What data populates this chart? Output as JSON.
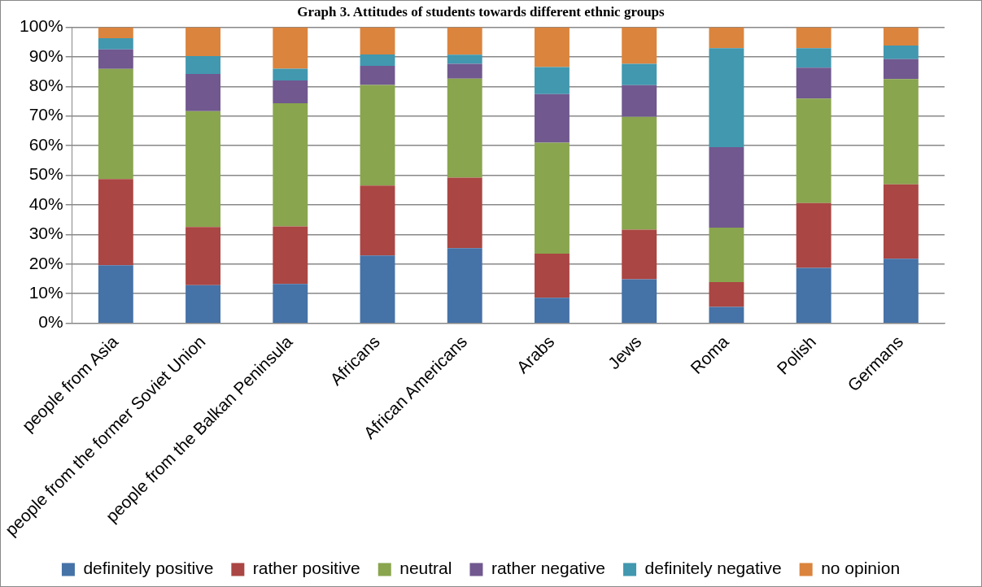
{
  "chart_data": {
    "type": "bar",
    "title": "Graph 3. Attitudes of students towards different ethnic groups",
    "stacked": true,
    "categories": [
      "people from Asia",
      "people from the former Soviet Union",
      "people from the Balkan Peninsula",
      "Africans",
      "African Americans",
      "Arabs",
      "Jews",
      "Roma",
      "Polish",
      "Germans"
    ],
    "series": [
      {
        "name": "definitely positive",
        "color": "#4572a7",
        "values": [
          19.6,
          12.9,
          13.3,
          22.9,
          25.4,
          8.6,
          14.9,
          5.5,
          18.7,
          21.8
        ]
      },
      {
        "name": "rather positive",
        "color": "#aa4643",
        "values": [
          29.1,
          19.6,
          19.4,
          23.6,
          23.8,
          14.9,
          16.7,
          8.4,
          21.9,
          25.1
        ]
      },
      {
        "name": "neutral",
        "color": "#89a54e",
        "values": [
          37.2,
          39.1,
          41.6,
          34.0,
          33.4,
          37.5,
          38.1,
          18.4,
          35.3,
          35.6
        ]
      },
      {
        "name": "rather negative",
        "color": "#71588f",
        "values": [
          6.6,
          12.6,
          7.7,
          6.4,
          5.0,
          16.4,
          10.7,
          27.2,
          10.4,
          6.7
        ]
      },
      {
        "name": "definitely negative",
        "color": "#4198af",
        "values": [
          3.8,
          6.0,
          4.0,
          3.9,
          3.1,
          9.1,
          7.2,
          33.4,
          6.6,
          4.6
        ]
      },
      {
        "name": "no opinion",
        "color": "#db843d",
        "values": [
          3.7,
          9.8,
          14.0,
          9.2,
          9.3,
          13.5,
          12.4,
          7.1,
          7.1,
          6.2
        ]
      }
    ],
    "ylim": [
      0,
      100
    ],
    "yticks": [
      {
        "value": 0,
        "label": "0%"
      },
      {
        "value": 10,
        "label": "10%"
      },
      {
        "value": 20,
        "label": "20%"
      },
      {
        "value": 30,
        "label": "30%"
      },
      {
        "value": 40,
        "label": "40%"
      },
      {
        "value": 50,
        "label": "50%"
      },
      {
        "value": 60,
        "label": "60%"
      },
      {
        "value": 70,
        "label": "70%"
      },
      {
        "value": 80,
        "label": "80%"
      },
      {
        "value": 90,
        "label": "90%"
      },
      {
        "value": 100,
        "label": "100%"
      }
    ],
    "grid": "y",
    "legend": "bottom"
  }
}
